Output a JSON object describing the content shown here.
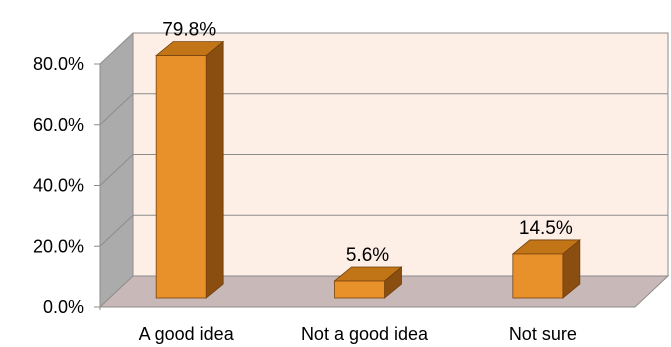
{
  "chart_data": {
    "type": "bar",
    "title": "",
    "xlabel": "",
    "ylabel": "",
    "categories": [
      "A good idea",
      "Not a good idea",
      "Not sure"
    ],
    "values": [
      79.8,
      5.6,
      14.5
    ],
    "data_labels": [
      "79.8%",
      "5.6%",
      "14.5%"
    ],
    "y_ticks": [
      "0.0%",
      "20.0%",
      "40.0%",
      "60.0%",
      "80.0%"
    ],
    "ylim": [
      0,
      80
    ],
    "grid": true,
    "legend": "none",
    "style": "3d-column",
    "colors": {
      "bar_front": "#e8902a",
      "bar_top": "#c27516",
      "bar_side": "#8a4f10",
      "back_wall": "#fdeee6",
      "side_wall": "#ababab",
      "floor": "#c8b8b8",
      "gridline": "#8c8c8c"
    }
  }
}
